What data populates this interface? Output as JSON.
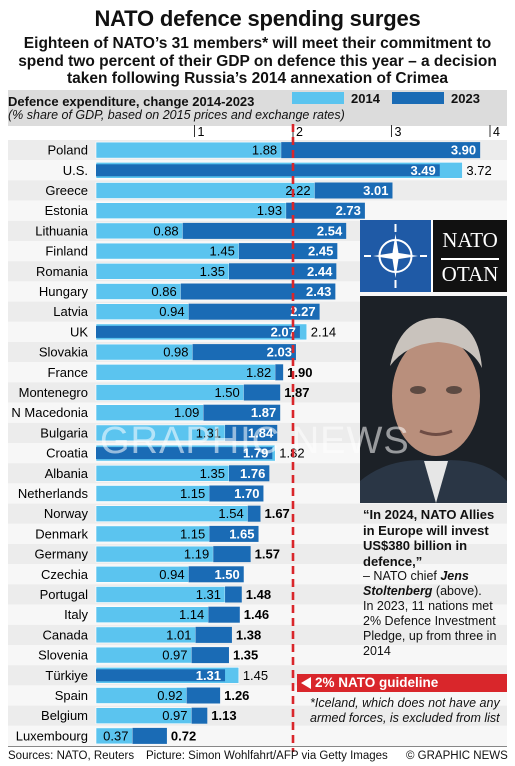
{
  "title": "NATO defence spending surges",
  "subtitle": "Eighteen of NATO’s 31 members* will meet their commitment to spend two percent of their GDP on defence this year – a decision taken following Russia’s 2014 annexation of Crimea",
  "chart_data": {
    "type": "bar",
    "title": "Defence expenditure, change 2014-2023",
    "subtitle": "(% share of GDP, based on 2015 prices and exchange rates)",
    "xlim": [
      0,
      4
    ],
    "ticks": [
      "1",
      "2",
      "3",
      "4"
    ],
    "guideline_value": 2,
    "categories": [
      "Poland",
      "U.S.",
      "Greece",
      "Estonia",
      "Lithuania",
      "Finland",
      "Romania",
      "Hungary",
      "Latvia",
      "UK",
      "Slovakia",
      "France",
      "Montenegro",
      "N Macedonia",
      "Bulgaria",
      "Croatia",
      "Albania",
      "Netherlands",
      "Norway",
      "Denmark",
      "Germany",
      "Czechia",
      "Portugal",
      "Italy",
      "Canada",
      "Slovenia",
      "Türkiye",
      "Spain",
      "Belgium",
      "Luxembourg"
    ],
    "series": [
      {
        "name": "2014",
        "color": "#5bc4ef",
        "values": [
          1.88,
          3.72,
          2.22,
          1.93,
          0.88,
          1.45,
          1.35,
          0.86,
          0.94,
          2.14,
          0.98,
          1.82,
          1.5,
          1.09,
          1.31,
          1.82,
          1.35,
          1.15,
          1.54,
          1.15,
          1.19,
          0.94,
          1.31,
          1.14,
          1.01,
          0.97,
          1.45,
          0.92,
          0.97,
          0.37
        ]
      },
      {
        "name": "2023",
        "color": "#1a6bb5",
        "values": [
          3.9,
          3.49,
          3.01,
          2.73,
          2.54,
          2.45,
          2.44,
          2.43,
          2.27,
          2.07,
          2.03,
          1.9,
          1.87,
          1.87,
          1.84,
          1.79,
          1.76,
          1.7,
          1.67,
          1.65,
          1.57,
          1.5,
          1.48,
          1.46,
          1.38,
          1.35,
          1.31,
          1.26,
          1.13,
          0.72
        ]
      }
    ],
    "labels_2014": [
      "1.88",
      "3.72",
      "2.22",
      "1.93",
      "0.88",
      "1.45",
      "1.35",
      "0.86",
      "0.94",
      "2.14",
      "0.98",
      "1.82",
      "1.50",
      "1.09",
      "1.31",
      "1.82",
      "1.35",
      "1.15",
      "1.54",
      "1.15",
      "1.19",
      "0.94",
      "1.31",
      "1.14",
      "1.01",
      "0.97",
      "1.45",
      "0.92",
      "0.97",
      "0.37"
    ],
    "labels_2023": [
      "3.90",
      "3.49",
      "3.01",
      "2.73",
      "2.54",
      "2.45",
      "2.44",
      "2.43",
      "2.27",
      "2.07",
      "2.03",
      "1.90",
      "1.87",
      "1.87",
      "1.84",
      "1.79",
      "1.76",
      "1.70",
      "1.67",
      "1.65",
      "1.57",
      "1.50",
      "1.48",
      "1.46",
      "1.38",
      "1.35",
      "1.31",
      "1.26",
      "1.13",
      "0.72"
    ]
  },
  "legend": {
    "a": "2014",
    "b": "2023",
    "color_a": "#5bc4ef",
    "color_b": "#1a6bb5"
  },
  "logo": {
    "line1": "NATO",
    "line2": "OTAN"
  },
  "quote": {
    "text": "“In 2024, NATO Allies in Europe will invest US$380 billion in defence,”",
    "attribution_prefix": " – NATO chief ",
    "name": "Jens Stoltenberg",
    "attribution_suffix": " (above).",
    "note": "In 2023, 11 nations met 2% Defence Investment Pledge, up from three in 2014"
  },
  "guideline_label": "2% NATO guideline",
  "footnote": "*Iceland, which does not have any armed forces, is excluded from list",
  "footer": {
    "sources": "Sources: NATO, Reuters",
    "picture": "Picture:  Simon Wohlfahrt/AFP via Getty Images",
    "credit": "© GRAPHIC NEWS"
  },
  "watermark": "GRAPHIC NEWS"
}
